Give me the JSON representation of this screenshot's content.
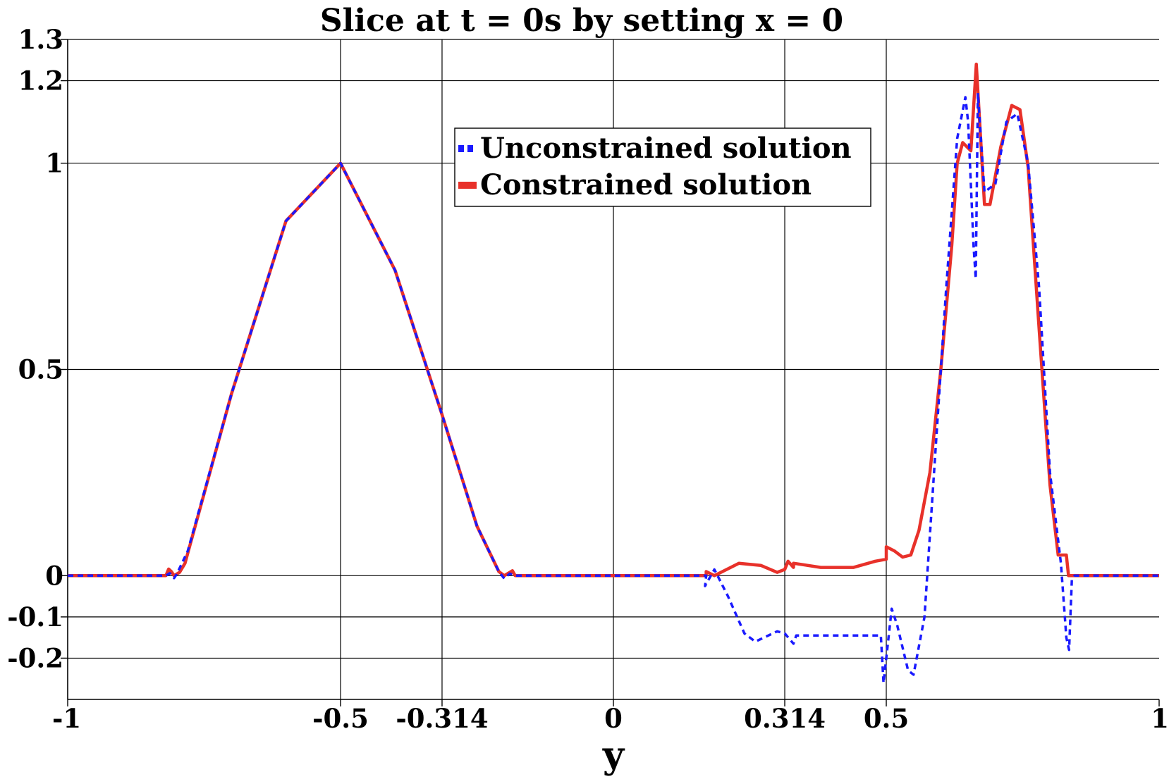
{
  "chart_data": {
    "type": "line",
    "title": "Slice at t = 0s by setting x = 0",
    "xlabel": "y",
    "ylabel": "",
    "xlim": [
      -1,
      1
    ],
    "ylim": [
      -0.3,
      1.3
    ],
    "grid": true,
    "legend_placement": "top-center",
    "x_ticks": [
      -1,
      -0.5,
      -0.314,
      0,
      0.314,
      0.5,
      1
    ],
    "x_tick_labels": [
      "-1",
      "-0.5",
      "-0.314",
      "0",
      "0.314",
      "0.5",
      "1"
    ],
    "y_ticks": [
      1.3,
      1.2,
      1,
      0.5,
      0,
      -0.1,
      -0.2
    ],
    "y_tick_labels": [
      "1.3",
      "1.2",
      "1",
      "0.5",
      "0",
      "-0.1",
      "-0.2"
    ],
    "series": [
      {
        "name": "Unconstrained solution",
        "color": "#1a1aff",
        "style": "dashed",
        "points": [
          [
            -1,
            0
          ],
          [
            -0.82,
            0
          ],
          [
            -0.813,
            0.006
          ],
          [
            -0.805,
            -0.006
          ],
          [
            -0.8,
            0.004
          ],
          [
            -0.78,
            0.06
          ],
          [
            -0.7,
            0.44
          ],
          [
            -0.6,
            0.86
          ],
          [
            -0.5,
            1.0
          ],
          [
            -0.4,
            0.74
          ],
          [
            -0.314,
            0.39
          ],
          [
            -0.25,
            0.12
          ],
          [
            -0.21,
            0.01
          ],
          [
            -0.2,
            -0.007
          ],
          [
            -0.19,
            0.005
          ],
          [
            -0.18,
            0
          ],
          [
            0.17,
            0
          ],
          [
            0.168,
            -0.025
          ],
          [
            0.185,
            0.015
          ],
          [
            0.21,
            -0.05
          ],
          [
            0.24,
            -0.14
          ],
          [
            0.26,
            -0.16
          ],
          [
            0.3,
            -0.135
          ],
          [
            0.314,
            -0.14
          ],
          [
            0.33,
            -0.165
          ],
          [
            0.335,
            -0.145
          ],
          [
            0.49,
            -0.145
          ],
          [
            0.495,
            -0.26
          ],
          [
            0.5,
            -0.2
          ],
          [
            0.51,
            -0.08
          ],
          [
            0.52,
            -0.12
          ],
          [
            0.54,
            -0.23
          ],
          [
            0.55,
            -0.24
          ],
          [
            0.57,
            -0.1
          ],
          [
            0.59,
            0.3
          ],
          [
            0.61,
            0.7
          ],
          [
            0.63,
            1.06
          ],
          [
            0.645,
            1.16
          ],
          [
            0.65,
            1.1
          ],
          [
            0.66,
            0.8
          ],
          [
            0.664,
            0.72
          ],
          [
            0.668,
            1.17
          ],
          [
            0.68,
            0.93
          ],
          [
            0.7,
            0.95
          ],
          [
            0.72,
            1.1
          ],
          [
            0.74,
            1.12
          ],
          [
            0.76,
            1.0
          ],
          [
            0.78,
            0.7
          ],
          [
            0.8,
            0.25
          ],
          [
            0.82,
            0.03
          ],
          [
            0.83,
            -0.15
          ],
          [
            0.835,
            -0.18
          ],
          [
            0.84,
            -0.01
          ],
          [
            0.845,
            0
          ],
          [
            1,
            0
          ]
        ]
      },
      {
        "name": "Constrained solution",
        "color": "#e8312a",
        "style": "solid",
        "points": [
          [
            -1,
            0
          ],
          [
            -0.82,
            0
          ],
          [
            -0.815,
            0.016
          ],
          [
            -0.81,
            0.01
          ],
          [
            -0.805,
            0.0
          ],
          [
            -0.795,
            0.008
          ],
          [
            -0.785,
            0.03
          ],
          [
            -0.7,
            0.44
          ],
          [
            -0.6,
            0.86
          ],
          [
            -0.5,
            1.0
          ],
          [
            -0.4,
            0.74
          ],
          [
            -0.314,
            0.39
          ],
          [
            -0.25,
            0.12
          ],
          [
            -0.21,
            0.01
          ],
          [
            -0.2,
            0.0
          ],
          [
            -0.185,
            0.012
          ],
          [
            -0.18,
            0
          ],
          [
            0.17,
            0
          ],
          [
            0.17,
            0.01
          ],
          [
            0.185,
            0.0
          ],
          [
            0.23,
            0.03
          ],
          [
            0.27,
            0.025
          ],
          [
            0.3,
            0.008
          ],
          [
            0.314,
            0.015
          ],
          [
            0.32,
            0.035
          ],
          [
            0.33,
            0.02
          ],
          [
            0.33,
            0.03
          ],
          [
            0.38,
            0.02
          ],
          [
            0.44,
            0.02
          ],
          [
            0.48,
            0.035
          ],
          [
            0.5,
            0.04
          ],
          [
            0.5,
            0.07
          ],
          [
            0.515,
            0.06
          ],
          [
            0.53,
            0.045
          ],
          [
            0.545,
            0.05
          ],
          [
            0.56,
            0.11
          ],
          [
            0.58,
            0.25
          ],
          [
            0.6,
            0.5
          ],
          [
            0.62,
            0.8
          ],
          [
            0.63,
            1.0
          ],
          [
            0.64,
            1.05
          ],
          [
            0.655,
            1.03
          ],
          [
            0.665,
            1.24
          ],
          [
            0.68,
            0.9
          ],
          [
            0.69,
            0.9
          ],
          [
            0.71,
            1.04
          ],
          [
            0.73,
            1.14
          ],
          [
            0.745,
            1.13
          ],
          [
            0.76,
            0.99
          ],
          [
            0.78,
            0.6
          ],
          [
            0.8,
            0.22
          ],
          [
            0.815,
            0.05
          ],
          [
            0.83,
            0.05
          ],
          [
            0.834,
            0.0
          ],
          [
            1,
            0
          ]
        ]
      }
    ]
  }
}
